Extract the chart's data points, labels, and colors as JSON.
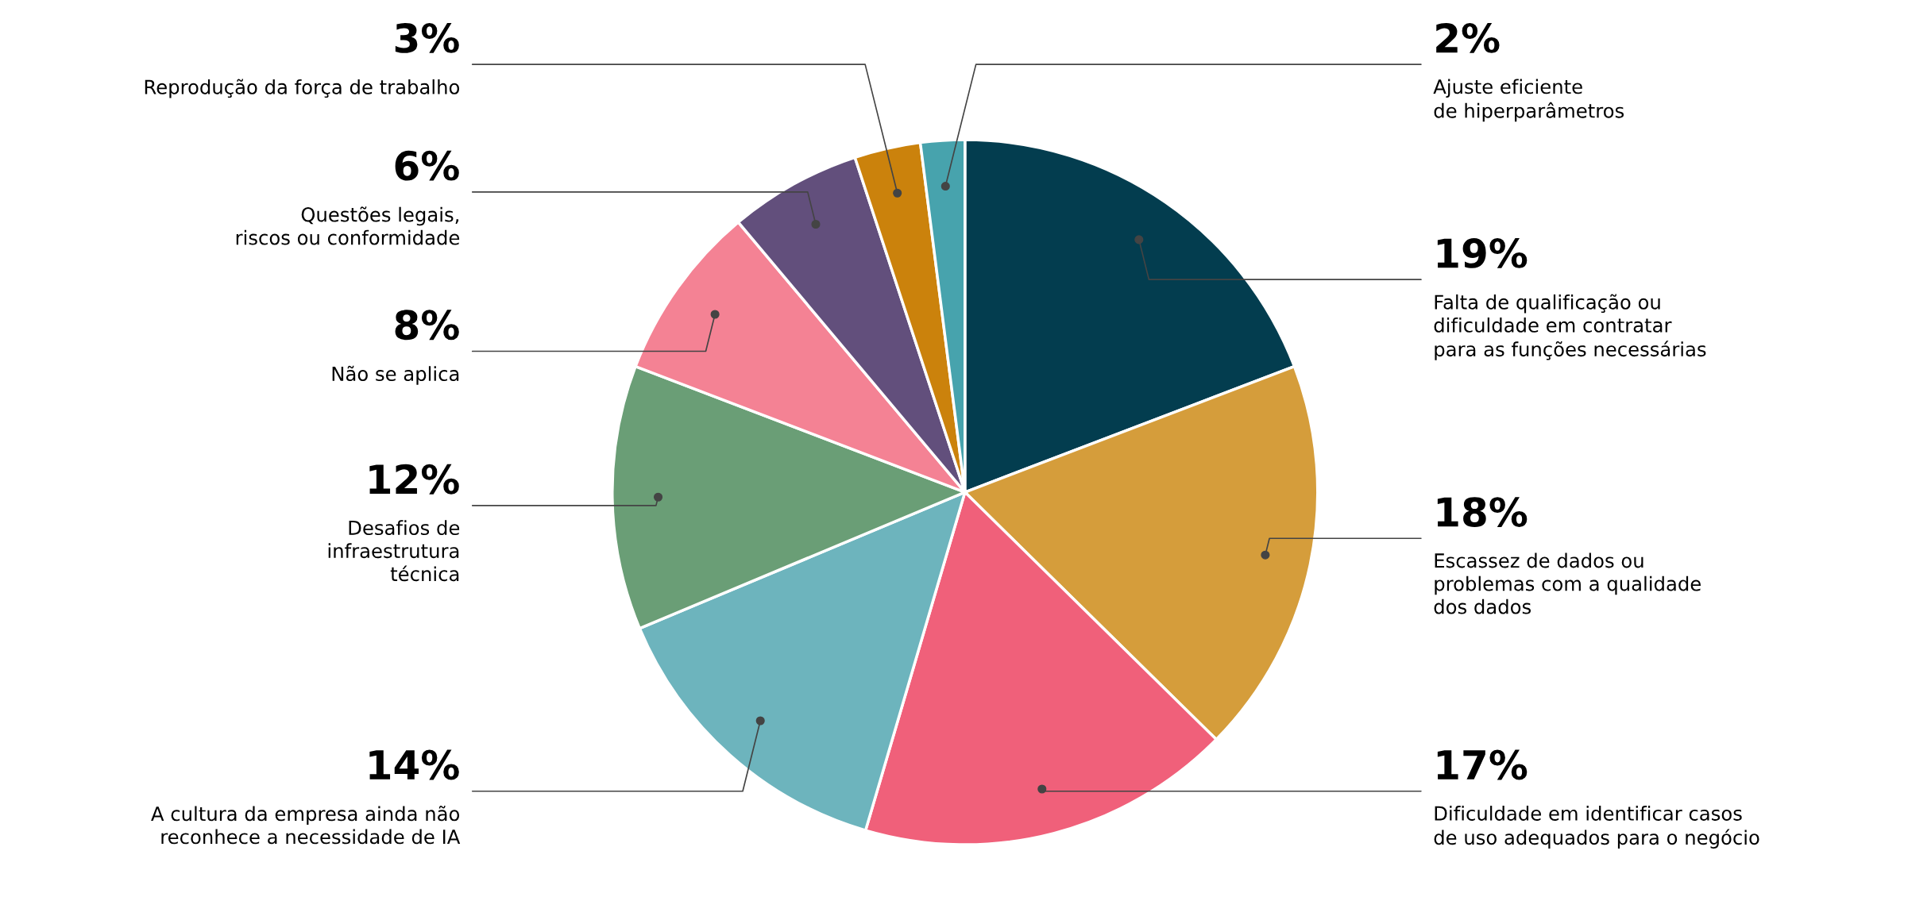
{
  "chart_data": {
    "type": "pie",
    "categories": [
      "Falta de qualificação ou\ndificuldade em contratar\npara as funções necessárias",
      "Escassez de dados ou\nproblemas com a qualidade\ndos dados",
      "Dificuldade em identificar casos\nde uso adequados para o negócio",
      "A cultura da empresa ainda não\nreconhece a necessidade de IA",
      "Desafios de\ninfraestrutura\ntécnica",
      "Não se aplica",
      "Questões legais,\nriscos ou conformidade",
      "Reprodução da força de trabalho",
      "Ajuste eficiente\nde hiperparâmetros"
    ],
    "values": [
      19,
      18,
      17,
      14,
      12,
      8,
      6,
      3,
      2
    ],
    "value_labels": [
      "19%",
      "18%",
      "17%",
      "14%",
      "12%",
      "8%",
      "6%",
      "3%",
      "2%"
    ],
    "colors": [
      "#033d4f",
      "#d59d3b",
      "#f0607a",
      "#6db4bd",
      "#6a9e76",
      "#f48294",
      "#624f7c",
      "#cb820c",
      "#47a3ad"
    ]
  }
}
